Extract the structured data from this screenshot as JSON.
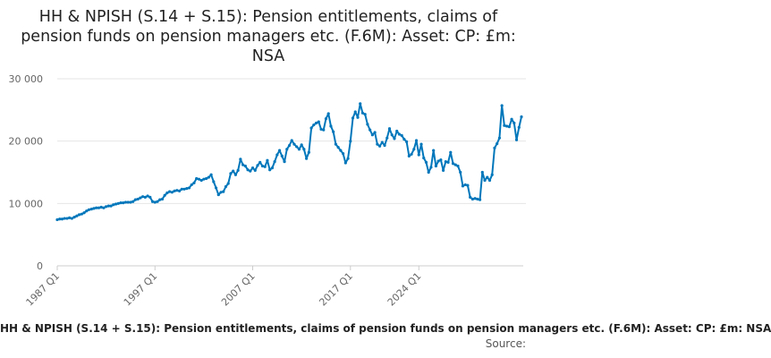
{
  "chart_data": {
    "type": "line",
    "title": "HH & NPISH (S.14 + S.15): Pension entitlements, claims of pension funds on pension managers etc. (F.6M): Asset: CP: £m: NSA",
    "xlabel": "",
    "ylabel": "",
    "ylim": [
      0,
      30000
    ],
    "y_ticks": [
      0,
      10000,
      20000,
      30000
    ],
    "y_tick_labels": [
      "0",
      "10 000",
      "20 000",
      "30 000"
    ],
    "x_tick_labels": [
      "1987 Q1",
      "1997 Q1",
      "2007 Q1",
      "2017 Q1",
      "2024 Q1"
    ],
    "x_tick_quarters": [
      "1987 Q1",
      "1997 Q1",
      "2007 Q1",
      "2017 Q1",
      "2024 Q1"
    ],
    "start_quarter": "1987 Q1",
    "grid": true,
    "line_color": "#0077bb",
    "series": [
      {
        "name": "HH & NPISH (S.14 + S.15): Pension entitlements, claims of pension funds on pension managers etc. (F.6M): Asset: CP: £m: NSA",
        "values": [
          7400,
          7500,
          7500,
          7600,
          7600,
          7700,
          7600,
          7800,
          8000,
          8200,
          8300,
          8500,
          8800,
          9000,
          9100,
          9200,
          9300,
          9300,
          9400,
          9300,
          9500,
          9600,
          9600,
          9800,
          9900,
          10000,
          10100,
          10100,
          10200,
          10200,
          10200,
          10300,
          10600,
          10700,
          10900,
          11100,
          11000,
          11200,
          11000,
          10300,
          10200,
          10300,
          10600,
          10700,
          11300,
          11700,
          11900,
          11800,
          12000,
          12100,
          12000,
          12300,
          12300,
          12400,
          12500,
          13000,
          13300,
          14000,
          13900,
          13700,
          13900,
          14000,
          14200,
          14600,
          13500,
          12500,
          11400,
          11800,
          11900,
          12700,
          13200,
          14800,
          15200,
          14600,
          15300,
          17100,
          16200,
          16000,
          15400,
          15200,
          15700,
          15300,
          16100,
          16600,
          16000,
          15900,
          16900,
          15400,
          15700,
          16700,
          17800,
          18500,
          17600,
          16700,
          18700,
          19300,
          20100,
          19500,
          19100,
          18700,
          19400,
          18700,
          17200,
          18200,
          22100,
          22600,
          22900,
          23100,
          21900,
          21800,
          23600,
          24400,
          22400,
          21500,
          19500,
          19000,
          18500,
          18000,
          16500,
          17200,
          20000,
          23700,
          24700,
          23800,
          26000,
          24500,
          24300,
          22700,
          21800,
          21000,
          21400,
          19500,
          19200,
          19800,
          19300,
          20500,
          22000,
          21000,
          20400,
          21600,
          21100,
          20900,
          20300,
          19900,
          17600,
          17900,
          18700,
          20100,
          17800,
          19500,
          17300,
          16600,
          15000,
          15800,
          18500,
          16000,
          16800,
          17000,
          15300,
          16700,
          16600,
          18200,
          16400,
          16200,
          16000,
          15000,
          12800,
          13000,
          12900,
          11000,
          10700,
          10800,
          10700,
          10600,
          15000,
          13700,
          14200,
          13700,
          14600,
          18900,
          19600,
          20500,
          25700,
          22500,
          22400,
          22300,
          23500,
          22900,
          20200,
          22200,
          23900
        ]
      }
    ]
  },
  "footer": {
    "legend_text": "HH & NPISH (S.14 + S.15): Pension entitlements, claims of pension funds on pension managers etc. (F.6M): Asset: CP: £m: NSA",
    "source_label": "Source:"
  }
}
